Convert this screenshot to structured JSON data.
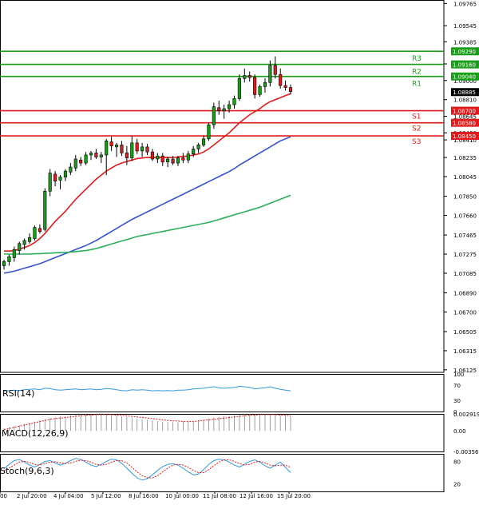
{
  "chart_data": {
    "type": "candlestick",
    "instrument_price_scale": [
      "1.09765",
      "1.09545",
      "1.09385",
      "1.09165",
      "1.09000",
      "1.08810",
      "1.08645",
      "1.08480",
      "1.08410",
      "1.08235",
      "1.08045",
      "1.07850",
      "1.07660",
      "1.07465",
      "1.07275",
      "1.07085",
      "1.06890",
      "1.06700",
      "1.06505",
      "1.06315",
      "1.06125"
    ],
    "price_axis": {
      "min": 1.061,
      "max": 1.098
    },
    "current_price": {
      "label": "1.08885",
      "value": 1.08885
    },
    "levels": [
      {
        "name": "R3",
        "value": 1.0929,
        "label": "1.09290",
        "color": "#1a9e1a"
      },
      {
        "name": "R2",
        "value": 1.0916,
        "label": "1.09160",
        "color": "#1a9e1a"
      },
      {
        "name": "R1",
        "value": 1.0904,
        "label": "1.09040",
        "color": "#1a9e1a"
      },
      {
        "name": "S1",
        "value": 1.087,
        "label": "1.08700",
        "color": "#e01b1b"
      },
      {
        "name": "S2",
        "value": 1.0858,
        "label": "1.08580",
        "color": "#e01b1b"
      },
      {
        "name": "S3",
        "value": 1.0845,
        "label": "1.08450",
        "color": "#e01b1b"
      }
    ],
    "x_tick_labels": [
      "00",
      "2 Jul 20:00",
      "4 Jul 04:00",
      "5 Jul 12:00",
      "8 Jul 16:00",
      "10 Jul 00:00",
      "11 Jul 08:00",
      "12 Jul 16:00",
      "15 Jul 20:00"
    ],
    "candles": [
      [
        1.0716,
        1.0722,
        1.0712,
        1.072
      ],
      [
        1.072,
        1.0727,
        1.0716,
        1.0725
      ],
      [
        1.0724,
        1.0735,
        1.072,
        1.0732
      ],
      [
        1.0731,
        1.074,
        1.0727,
        1.0738
      ],
      [
        1.0737,
        1.0743,
        1.0732,
        1.0741
      ],
      [
        1.074,
        1.0748,
        1.0738,
        1.0744
      ],
      [
        1.0743,
        1.0756,
        1.0741,
        1.0754
      ],
      [
        1.0753,
        1.0757,
        1.0748,
        1.075
      ],
      [
        1.0752,
        1.0793,
        1.075,
        1.079
      ],
      [
        1.079,
        1.0812,
        1.0785,
        1.0808
      ],
      [
        1.0807,
        1.081,
        1.0795,
        1.08
      ],
      [
        1.0801,
        1.0806,
        1.0792,
        1.0804
      ],
      [
        1.0804,
        1.0812,
        1.08,
        1.081
      ],
      [
        1.0809,
        1.0818,
        1.0806,
        1.0814
      ],
      [
        1.0813,
        1.0826,
        1.081,
        1.0822
      ],
      [
        1.0821,
        1.0824,
        1.0815,
        1.0818
      ],
      [
        1.0818,
        1.0829,
        1.0816,
        1.0826
      ],
      [
        1.0826,
        1.083,
        1.0821,
        1.0828
      ],
      [
        1.0828,
        1.0832,
        1.0822,
        1.0824
      ],
      [
        1.0824,
        1.0829,
        1.0818,
        1.0826
      ],
      [
        1.0826,
        1.0842,
        1.0806,
        1.084
      ],
      [
        1.0839,
        1.0844,
        1.083,
        1.0835
      ],
      [
        1.0834,
        1.0838,
        1.0824,
        1.0836
      ],
      [
        1.0836,
        1.084,
        1.0825,
        1.0828
      ],
      [
        1.0828,
        1.0835,
        1.0816,
        1.0823
      ],
      [
        1.0823,
        1.0845,
        1.082,
        1.0838
      ],
      [
        1.0838,
        1.0842,
        1.0827,
        1.083
      ],
      [
        1.083,
        1.0838,
        1.0824,
        1.0834
      ],
      [
        1.0834,
        1.0837,
        1.0826,
        1.0829
      ],
      [
        1.0829,
        1.0832,
        1.082,
        1.0822
      ],
      [
        1.0822,
        1.0828,
        1.0818,
        1.0825
      ],
      [
        1.0825,
        1.0828,
        1.0815,
        1.0819
      ],
      [
        1.0819,
        1.0824,
        1.0814,
        1.0822
      ],
      [
        1.0822,
        1.0825,
        1.0816,
        1.0818
      ],
      [
        1.0818,
        1.0825,
        1.0815,
        1.0823
      ],
      [
        1.0823,
        1.0828,
        1.0818,
        1.0821
      ],
      [
        1.0821,
        1.083,
        1.0818,
        1.0827
      ],
      [
        1.0827,
        1.0835,
        1.0824,
        1.0832
      ],
      [
        1.0832,
        1.0838,
        1.0828,
        1.0836
      ],
      [
        1.0836,
        1.0845,
        1.0834,
        1.0842
      ],
      [
        1.0842,
        1.0858,
        1.084,
        1.0856
      ],
      [
        1.0856,
        1.0878,
        1.0852,
        1.0874
      ],
      [
        1.0873,
        1.088,
        1.0866,
        1.087
      ],
      [
        1.087,
        1.0876,
        1.0862,
        1.0872
      ],
      [
        1.0872,
        1.088,
        1.0868,
        1.0876
      ],
      [
        1.0876,
        1.0885,
        1.0872,
        1.0882
      ],
      [
        1.0882,
        1.0906,
        1.088,
        1.0902
      ],
      [
        1.0902,
        1.0912,
        1.0898,
        1.0905
      ],
      [
        1.0905,
        1.0909,
        1.0899,
        1.0903
      ],
      [
        1.0903,
        1.0906,
        1.0882,
        1.0886
      ],
      [
        1.0886,
        1.0896,
        1.0884,
        1.0894
      ],
      [
        1.0894,
        1.0902,
        1.0888,
        1.0898
      ],
      [
        1.0898,
        1.092,
        1.0894,
        1.0915
      ],
      [
        1.0915,
        1.0924,
        1.0902,
        1.0906
      ],
      [
        1.0906,
        1.0912,
        1.0892,
        1.0895
      ],
      [
        1.0895,
        1.09,
        1.089,
        1.0893
      ],
      [
        1.0893,
        1.0896,
        1.0886,
        1.0889
      ]
    ],
    "series": [
      {
        "values": [
          1.07305,
          1.07305,
          1.0731,
          1.07325,
          1.0734,
          1.0736,
          1.0739,
          1.0743,
          1.0748,
          1.0754,
          1.076,
          1.0765,
          1.077,
          1.0776,
          1.0782,
          1.0787,
          1.0792,
          1.0797,
          1.0802,
          1.0806,
          1.081,
          1.0813,
          1.0816,
          1.0818,
          1.08195,
          1.0821,
          1.08225,
          1.0823,
          1.08235,
          1.08235,
          1.08235,
          1.08235,
          1.08235,
          1.08235,
          1.0824,
          1.08245,
          1.0825,
          1.0826,
          1.0827,
          1.0829,
          1.0832,
          1.0836,
          1.084,
          1.0844,
          1.0848,
          1.0853,
          1.0858,
          1.0862,
          1.0866,
          1.0869,
          1.0872,
          1.0876,
          1.0879,
          1.0881,
          1.0883,
          1.0885,
          1.0887
        ],
        "color": "#e01b1b"
      },
      {
        "values": [
          1.07085,
          1.07095,
          1.07105,
          1.0712,
          1.07135,
          1.0715,
          1.07165,
          1.0718,
          1.072,
          1.0722,
          1.0724,
          1.0726,
          1.0728,
          1.073,
          1.0732,
          1.0734,
          1.0736,
          1.07385,
          1.0741,
          1.0744,
          1.0747,
          1.075,
          1.0753,
          1.0756,
          1.0759,
          1.0762,
          1.07645,
          1.0767,
          1.07695,
          1.0772,
          1.07745,
          1.0777,
          1.07795,
          1.0782,
          1.07845,
          1.0787,
          1.07895,
          1.0792,
          1.07945,
          1.0797,
          1.07995,
          1.0802,
          1.08045,
          1.0807,
          1.08095,
          1.08125,
          1.0816,
          1.0819,
          1.0822,
          1.0825,
          1.0828,
          1.0831,
          1.0834,
          1.0837,
          1.084,
          1.0842,
          1.0844
        ],
        "color": "#3355cc"
      },
      {
        "values": [
          1.07275,
          1.07275,
          1.07275,
          1.07275,
          1.07275,
          1.07275,
          1.07278,
          1.0728,
          1.07282,
          1.07285,
          1.07288,
          1.0729,
          1.07292,
          1.07295,
          1.073,
          1.07305,
          1.0731,
          1.0732,
          1.0733,
          1.07345,
          1.0736,
          1.07375,
          1.0739,
          1.07405,
          1.0742,
          1.07435,
          1.0745,
          1.0746,
          1.0747,
          1.0748,
          1.0749,
          1.075,
          1.0751,
          1.0752,
          1.0753,
          1.0754,
          1.0755,
          1.0756,
          1.0757,
          1.0758,
          1.0759,
          1.07605,
          1.0762,
          1.07635,
          1.0765,
          1.07665,
          1.0768,
          1.07695,
          1.0771,
          1.07725,
          1.0774,
          1.0776,
          1.0778,
          1.078,
          1.0782,
          1.0784,
          1.0786
        ],
        "color": "#2bae5a"
      }
    ],
    "rsi": {
      "label": "RSI(14)",
      "scale": [
        "100",
        "70",
        "30",
        "0"
      ],
      "values": [
        55,
        56,
        57,
        56,
        58,
        59,
        60,
        58,
        62,
        61,
        58,
        57,
        58,
        59,
        60,
        58,
        59,
        60,
        58,
        59,
        61,
        60,
        58,
        56,
        55,
        58,
        57,
        58,
        57,
        55,
        56,
        55,
        56,
        55,
        57,
        57,
        58,
        60,
        61,
        62,
        64,
        66,
        63,
        62,
        63,
        64,
        67,
        66,
        64,
        60,
        62,
        63,
        66,
        62,
        59,
        57,
        55
      ],
      "color": "#3399dd"
    },
    "macd": {
      "label": "MACD(12,26,9)",
      "scale": [
        "0.002919",
        "0.00",
        "-0.00356"
      ],
      "histogram": [
        0.0004,
        0.0006,
        0.0008,
        0.001,
        0.0012,
        0.0014,
        0.0016,
        0.0018,
        0.002,
        0.0022,
        0.0024,
        0.0025,
        0.0026,
        0.0027,
        0.0028,
        0.0029,
        0.0029,
        0.0029,
        0.0029,
        0.0028,
        0.0028,
        0.0027,
        0.0026,
        0.0025,
        0.0024,
        0.0023,
        0.0021,
        0.002,
        0.0019,
        0.0018,
        0.0017,
        0.0016,
        0.0015,
        0.0015,
        0.0015,
        0.0016,
        0.0016,
        0.0017,
        0.0018,
        0.0019,
        0.0021,
        0.0023,
        0.0024,
        0.0025,
        0.0026,
        0.0027,
        0.0028,
        0.0029,
        0.0029,
        0.0028,
        0.0028,
        0.0028,
        0.0028,
        0.0027,
        0.0026,
        0.0026,
        0.0025
      ],
      "signal": [
        0.0002,
        0.0004,
        0.0006,
        0.0008,
        0.001,
        0.0012,
        0.0014,
        0.0016,
        0.0018,
        0.002,
        0.0021,
        0.0022,
        0.0023,
        0.0024,
        0.0025,
        0.0026,
        0.0027,
        0.0027,
        0.0028,
        0.0028,
        0.0028,
        0.0028,
        0.0027,
        0.0027,
        0.0026,
        0.0025,
        0.0024,
        0.0023,
        0.0022,
        0.0021,
        0.002,
        0.0019,
        0.0018,
        0.0017,
        0.0017,
        0.0016,
        0.0016,
        0.0016,
        0.0017,
        0.0018,
        0.0019,
        0.002,
        0.0021,
        0.0022,
        0.0023,
        0.0024,
        0.0025,
        0.0026,
        0.0027,
        0.0027,
        0.0028,
        0.0028,
        0.0028,
        0.0028,
        0.0027,
        0.0027,
        0.0026
      ],
      "range": [
        -0.00356,
        0.002919
      ],
      "histogram_color": "#888888",
      "signal_color": "#e01b1b"
    },
    "stoch": {
      "label": "Stoch(9,6,3)",
      "scale": [
        "80",
        "20"
      ],
      "k": [
        60,
        72,
        82,
        85,
        78,
        70,
        65,
        72,
        80,
        82,
        76,
        70,
        75,
        82,
        88,
        85,
        78,
        70,
        66,
        72,
        80,
        86,
        84,
        75,
        62,
        48,
        36,
        30,
        34,
        44,
        56,
        66,
        72,
        74,
        70,
        62,
        52,
        44,
        46,
        58,
        72,
        82,
        86,
        84,
        78,
        70,
        65,
        72,
        80,
        84,
        78,
        68,
        62,
        70,
        78,
        64,
        50
      ],
      "d": [
        55,
        62,
        70,
        78,
        80,
        77,
        72,
        70,
        74,
        78,
        79,
        76,
        74,
        76,
        80,
        83,
        82,
        78,
        72,
        70,
        72,
        78,
        82,
        82,
        76,
        64,
        52,
        42,
        36,
        36,
        42,
        52,
        62,
        70,
        72,
        70,
        64,
        56,
        50,
        50,
        58,
        68,
        78,
        84,
        84,
        80,
        74,
        70,
        72,
        78,
        80,
        76,
        70,
        68,
        70,
        70,
        64
      ],
      "k_color": "#3399dd",
      "d_color": "#e01b1b"
    }
  }
}
